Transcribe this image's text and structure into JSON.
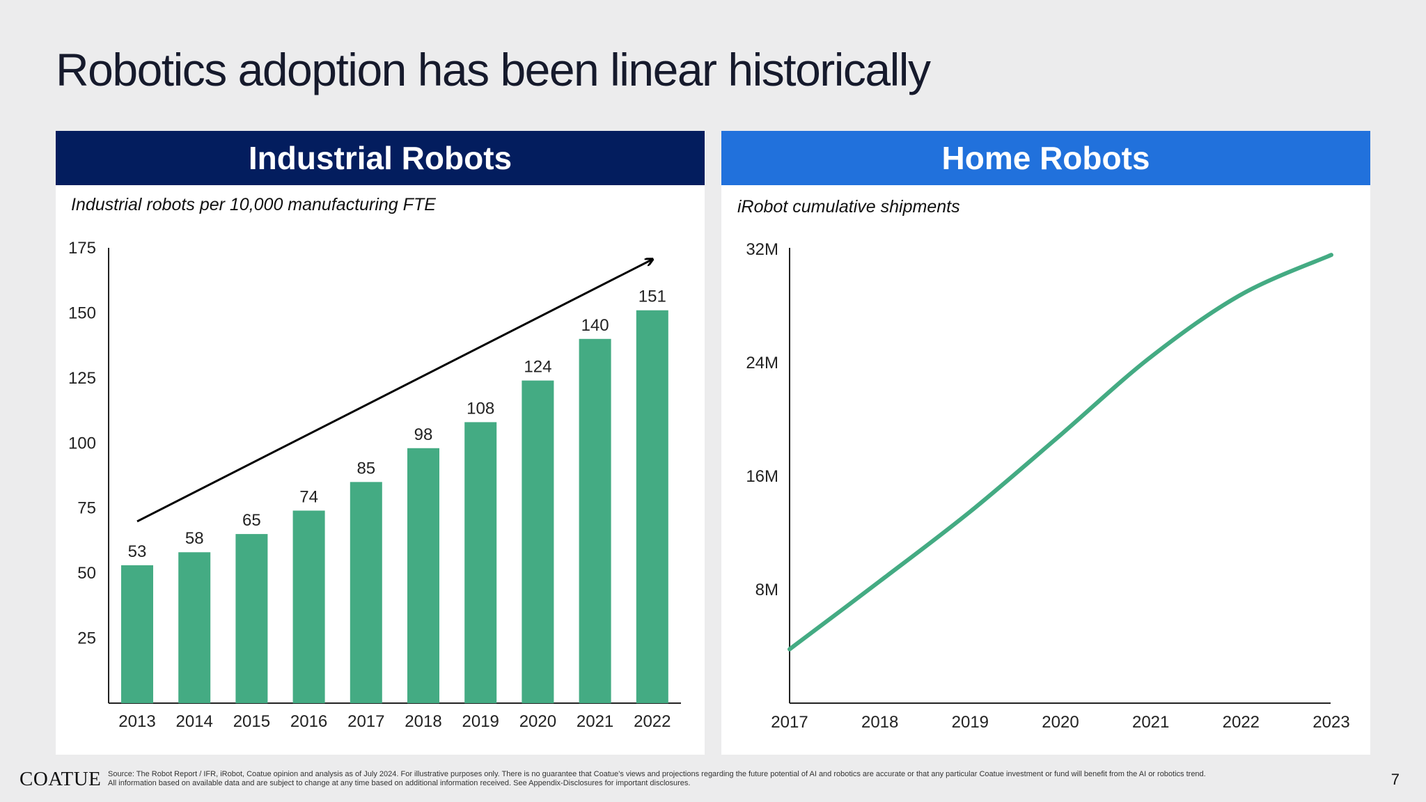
{
  "slide": {
    "title": "Robotics adoption has been linear historically",
    "page_number": "7"
  },
  "footer": {
    "logo": "COATUE",
    "source_line1": "Source: The Robot Report / IFR, iRobot, Coatue opinion and analysis as of July 2024. For illustrative purposes only. There is no guarantee that Coatue’s views and projections regarding the future potential of AI and robotics are accurate or that any particular Coatue investment or fund will benefit from the AI or robotics trend.",
    "source_line2": "All information based on available data and are subject to change at any time based on additional information received. See Appendix-Disclosures for important disclosures."
  },
  "panels": {
    "left": {
      "header": "Industrial Robots",
      "subtitle": "Industrial robots per 10,000 manufacturing FTE",
      "header_color": "#031d5e"
    },
    "right": {
      "header": "Home Robots",
      "subtitle": "iRobot cumulative shipments",
      "header_color": "#2171dc"
    }
  },
  "colors": {
    "bar": "#44ab83",
    "line": "#44ab83",
    "arrow": "#000000"
  },
  "chart_data": [
    {
      "type": "bar",
      "categories": [
        "2013",
        "2014",
        "2015",
        "2016",
        "2017",
        "2018",
        "2019",
        "2020",
        "2021",
        "2022"
      ],
      "values": [
        53,
        58,
        65,
        74,
        85,
        98,
        108,
        124,
        140,
        151
      ],
      "value_labels": [
        "53",
        "58",
        "65",
        "74",
        "85",
        "98",
        "108",
        "124",
        "140",
        "151"
      ],
      "yticks": [
        "25",
        "50",
        "75",
        "100",
        "125",
        "150",
        "175"
      ],
      "ylim": [
        0,
        175
      ],
      "annotation": "upward trend arrow",
      "grid": false
    },
    {
      "type": "line",
      "x": [
        "2017",
        "2018",
        "2019",
        "2020",
        "2021",
        "2022",
        "2023"
      ],
      "values_millions": [
        3.8,
        8.6,
        13.5,
        18.9,
        24.4,
        28.8,
        31.6
      ],
      "yticks": [
        "8M",
        "16M",
        "24M",
        "32M"
      ],
      "ylim": [
        0,
        32
      ],
      "grid": false
    }
  ]
}
